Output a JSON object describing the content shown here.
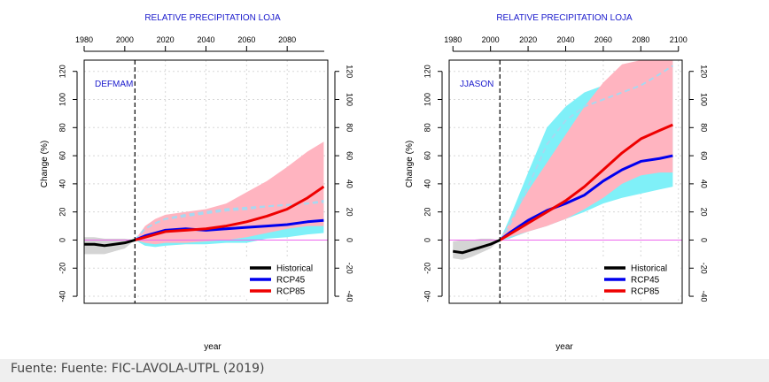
{
  "caption": "Fuente: Fuente: FIC-LAVOLA-UTPL (2019)",
  "colors": {
    "title": "#1a1acc",
    "historical": "#000000",
    "rcp45": "#0000ee",
    "rcp85": "#ee0000",
    "rcp45_band": "#7ff0f8",
    "rcp85_band": "#ffb4c0",
    "hist_band": "#d4d4d4",
    "zero_line": "#ee66ee"
  },
  "chart_data": [
    {
      "type": "line",
      "title": "RELATIVE PRECIPITATION LOJA",
      "panel_label": "DEFMAM",
      "xlabel": "year",
      "ylabel": "Change (%)",
      "xlim": [
        1980,
        2100
      ],
      "ylim": [
        -45,
        128
      ],
      "top_ticks": [
        1980,
        2000,
        2020,
        2040,
        2060,
        2080
      ],
      "yticks": [
        -40,
        -20,
        0,
        20,
        40,
        60,
        80,
        100,
        120
      ],
      "reference_year": 2005,
      "grid": true,
      "legend_position": "bottom-right",
      "legend": [
        "Historical",
        "RCP45",
        "RCP85"
      ],
      "historical": {
        "x": [
          1980,
          1985,
          1990,
          1995,
          2000,
          2005
        ],
        "y": [
          -3,
          -3,
          -4,
          -3,
          -2,
          0
        ],
        "lower": [
          -10,
          -10,
          -10,
          -8,
          -6,
          0
        ],
        "upper": [
          2,
          2,
          1,
          1,
          1,
          0
        ]
      },
      "rcp45": {
        "x": [
          2005,
          2010,
          2015,
          2020,
          2030,
          2040,
          2050,
          2060,
          2070,
          2080,
          2090,
          2098
        ],
        "y": [
          0,
          3,
          5,
          7,
          8,
          7,
          8,
          9,
          10,
          11,
          13,
          14
        ],
        "lower": [
          0,
          -4,
          -5,
          -4,
          -3,
          -3,
          -2,
          -2,
          1,
          2,
          4,
          5
        ],
        "upper": [
          0,
          8,
          12,
          16,
          18,
          20,
          22,
          23,
          24,
          24,
          25,
          26
        ],
        "dashed_upper": [
          0,
          8,
          12,
          15,
          17,
          19,
          21,
          22,
          24,
          25,
          26,
          27
        ]
      },
      "rcp85": {
        "x": [
          2005,
          2010,
          2015,
          2020,
          2030,
          2040,
          2050,
          2060,
          2070,
          2080,
          2090,
          2098
        ],
        "y": [
          0,
          2,
          4,
          6,
          7,
          8,
          10,
          13,
          17,
          22,
          30,
          38
        ],
        "lower": [
          0,
          -2,
          -3,
          -2,
          -2,
          -1,
          0,
          2,
          5,
          8,
          10,
          10
        ],
        "upper": [
          0,
          10,
          15,
          18,
          20,
          22,
          26,
          34,
          42,
          52,
          63,
          70
        ],
        "dashed_upper": [
          0,
          8,
          12,
          15,
          18,
          20,
          22,
          23,
          24,
          25,
          26,
          28
        ]
      }
    },
    {
      "type": "line",
      "title": "RELATIVE PRECIPITATION LOJA",
      "panel_label": "JJASON",
      "xlabel": "year",
      "ylabel": "Change (%)",
      "xlim": [
        1978,
        2102
      ],
      "ylim": [
        -45,
        128
      ],
      "top_ticks": [
        1980,
        2000,
        2020,
        2040,
        2060,
        2080,
        2100
      ],
      "yticks": [
        -40,
        -20,
        0,
        20,
        40,
        60,
        80,
        100,
        120
      ],
      "reference_year": 2005,
      "grid": true,
      "legend_position": "bottom-right",
      "legend": [
        "Historical",
        "RCP45",
        "RCP85"
      ],
      "historical": {
        "x": [
          1980,
          1985,
          1990,
          1995,
          2000,
          2005
        ],
        "y": [
          -8,
          -9,
          -7,
          -5,
          -3,
          0
        ],
        "lower": [
          -13,
          -14,
          -12,
          -9,
          -6,
          0
        ],
        "upper": [
          -1,
          0,
          0,
          1,
          1,
          0
        ]
      },
      "rcp45": {
        "x": [
          2005,
          2010,
          2020,
          2030,
          2040,
          2050,
          2060,
          2070,
          2080,
          2090,
          2097
        ],
        "y": [
          0,
          5,
          14,
          21,
          26,
          32,
          42,
          50,
          56,
          58,
          60
        ],
        "lower": [
          0,
          1,
          6,
          10,
          15,
          20,
          26,
          30,
          33,
          36,
          38
        ],
        "upper": [
          0,
          15,
          48,
          80,
          95,
          105,
          110,
          115,
          120,
          125,
          128
        ],
        "dashed_upper": [
          0,
          10,
          38,
          68,
          85,
          95,
          100,
          105,
          110,
          118,
          124
        ]
      },
      "rcp85": {
        "x": [
          2005,
          2010,
          2020,
          2030,
          2040,
          2050,
          2060,
          2070,
          2080,
          2090,
          2097
        ],
        "y": [
          0,
          4,
          12,
          20,
          28,
          38,
          50,
          62,
          72,
          78,
          82
        ],
        "lower": [
          0,
          2,
          6,
          10,
          15,
          22,
          30,
          40,
          46,
          48,
          48
        ],
        "upper": [
          0,
          12,
          35,
          55,
          75,
          95,
          112,
          125,
          128,
          128,
          128
        ]
      }
    }
  ]
}
